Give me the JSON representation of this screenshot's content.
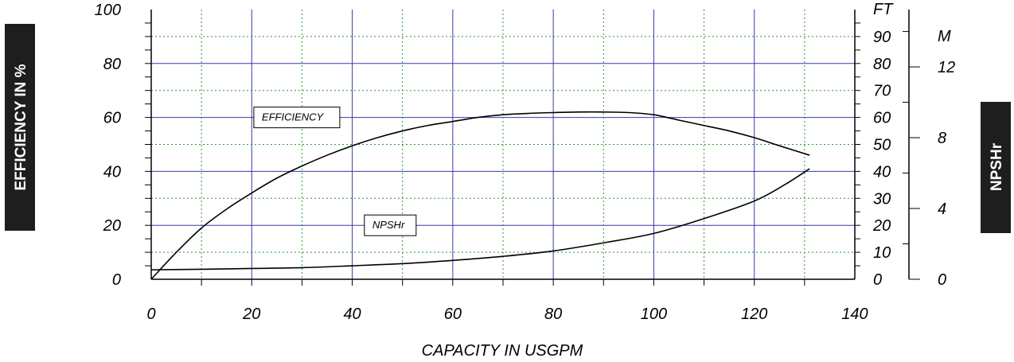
{
  "chart_data": {
    "type": "line",
    "xlabel": "CAPACITY IN USGPM",
    "ylabel_left": "EFFICIENCY IN %",
    "ylabel_right": "NPSHr",
    "xlim": [
      0,
      140
    ],
    "x_ticks": [
      0,
      20,
      40,
      60,
      80,
      100,
      120,
      140
    ],
    "ylim_left": [
      0,
      100
    ],
    "y_ticks_left": [
      0,
      20,
      40,
      60,
      80,
      100
    ],
    "right_axis_ft": {
      "unit": "FT",
      "range": [
        0,
        100
      ],
      "ticks": [
        0,
        10,
        20,
        30,
        40,
        50,
        60,
        70,
        80,
        90
      ]
    },
    "right_axis_m": {
      "unit": "M",
      "range": [
        0,
        15.24
      ],
      "ticks": [
        0,
        4,
        8,
        12
      ]
    },
    "grid": true,
    "series": [
      {
        "name": "EFFICIENCY",
        "axis": "left",
        "color": "#000000",
        "label_at": [
          22,
          60
        ],
        "points": [
          [
            0,
            0
          ],
          [
            5,
            10
          ],
          [
            10,
            19
          ],
          [
            15,
            26
          ],
          [
            20,
            32
          ],
          [
            25,
            37.5
          ],
          [
            30,
            42
          ],
          [
            35,
            46
          ],
          [
            40,
            49.5
          ],
          [
            45,
            52.5
          ],
          [
            50,
            55
          ],
          [
            55,
            57
          ],
          [
            60,
            58.5
          ],
          [
            65,
            60
          ],
          [
            70,
            61
          ],
          [
            75,
            61.5
          ],
          [
            80,
            61.8
          ],
          [
            85,
            62
          ],
          [
            90,
            62
          ],
          [
            95,
            61.8
          ],
          [
            100,
            61
          ],
          [
            105,
            59
          ],
          [
            110,
            57
          ],
          [
            115,
            55
          ],
          [
            120,
            52.5
          ],
          [
            125,
            49.5
          ],
          [
            131,
            46
          ]
        ]
      },
      {
        "name": "NPSHr",
        "axis": "right_ft",
        "color": "#000000",
        "label_at": [
          44,
          20
        ],
        "points": [
          [
            0,
            3.5
          ],
          [
            10,
            3.7
          ],
          [
            20,
            4
          ],
          [
            30,
            4.3
          ],
          [
            40,
            5
          ],
          [
            50,
            5.8
          ],
          [
            60,
            7
          ],
          [
            70,
            8.5
          ],
          [
            80,
            10.5
          ],
          [
            90,
            13.5
          ],
          [
            100,
            17
          ],
          [
            110,
            22.5
          ],
          [
            120,
            29
          ],
          [
            126,
            35
          ],
          [
            131,
            41
          ]
        ]
      }
    ]
  },
  "colors": {
    "major_grid": "#3a3aa8",
    "minor_grid": "#2e9b2e",
    "axis": "#000000",
    "side_box": "#1e1e1e"
  }
}
